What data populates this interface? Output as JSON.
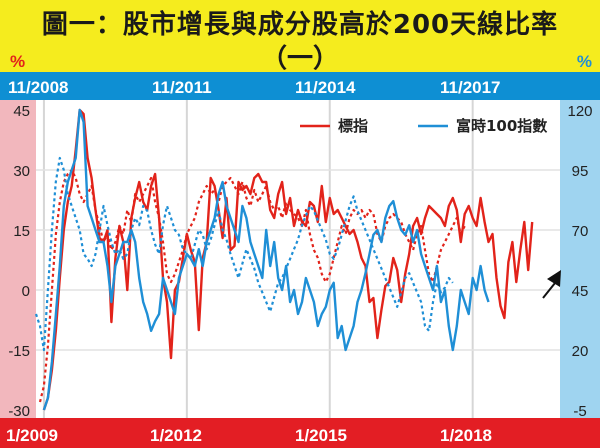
{
  "title": {
    "line1": "圖一：股市增長與成分股高於200天線比率",
    "line2": "（一）"
  },
  "units": {
    "left": "%",
    "right": "%"
  },
  "colors": {
    "title_bg": "#f5ec1e",
    "top_band": "#0e8fd3",
    "bottom_band": "#e31e24",
    "left_band": "#f2b7bd",
    "right_band": "#9fd4f0",
    "series_red": "#e2231a",
    "series_blue": "#1f8fd6"
  },
  "chart_data": {
    "type": "line",
    "top_axis_labels": [
      "11/2008",
      "11/2011",
      "11/2014",
      "11/2017"
    ],
    "bottom_axis_labels": [
      "1/2009",
      "1/2012",
      "1/2015",
      "1/2018"
    ],
    "left_axis": {
      "ticks": [
        45,
        30,
        15,
        0,
        -15,
        -30
      ],
      "ylim": [
        -30,
        45
      ]
    },
    "right_axis": {
      "ticks": [
        120,
        95,
        70,
        45,
        20,
        -5
      ],
      "ylim": [
        -5,
        120
      ]
    },
    "legend": {
      "position": "top-right"
    },
    "grid": true,
    "series": [
      {
        "name": "標指",
        "axis": "left",
        "style": "solid",
        "color": "#e2231a",
        "x_start": 2009.0,
        "x_step": 0.0833333,
        "values": [
          -30,
          -27,
          -20,
          -10,
          3,
          15,
          22,
          26,
          35,
          45,
          44,
          33,
          28,
          20,
          13,
          12,
          15,
          -8,
          8,
          16,
          12,
          0,
          18,
          23,
          27,
          22,
          20,
          26,
          29,
          18,
          3,
          -3,
          -17,
          0,
          2,
          8,
          14,
          10,
          7,
          -10,
          8,
          12,
          28,
          26,
          20,
          13,
          23,
          10,
          11,
          27,
          25,
          26,
          24,
          28,
          29,
          27,
          27,
          20,
          18,
          24,
          27,
          19,
          23,
          16,
          20,
          17,
          16,
          22,
          21,
          17,
          26,
          17,
          23,
          19,
          20,
          18,
          16,
          14,
          15,
          12,
          8,
          6,
          -3,
          -2,
          -12,
          -5,
          1,
          2,
          8,
          5,
          -3,
          4,
          9,
          16,
          18,
          14,
          18,
          21,
          20,
          19,
          18,
          16,
          21,
          23,
          20,
          12,
          19,
          21,
          18,
          16,
          23,
          17,
          12,
          14,
          3,
          -4,
          -7,
          7,
          12,
          2,
          10,
          17,
          5,
          17
        ]
      },
      {
        "name": "",
        "axis": "left",
        "style": "dotted",
        "color": "#e2231a",
        "x_start": 2008.9167,
        "x_step": 0.0833333,
        "values": [
          -28,
          -24,
          -14,
          0,
          14,
          22,
          27,
          29,
          30,
          28,
          24,
          22,
          24,
          26,
          20,
          16,
          12,
          14,
          10,
          12,
          16,
          14,
          20,
          17,
          24,
          22,
          24,
          26,
          28,
          22,
          18,
          12,
          4,
          2,
          4,
          7,
          10,
          14,
          16,
          18,
          22,
          24,
          26,
          24,
          25,
          22,
          26,
          27,
          28,
          26,
          24,
          27,
          23,
          21,
          25,
          22,
          24,
          26,
          22,
          20,
          21,
          18,
          22,
          20,
          19,
          18,
          16,
          20,
          14,
          10,
          8,
          4,
          2,
          4,
          8,
          12,
          16,
          14,
          18,
          20,
          19,
          20,
          18,
          20,
          19,
          14,
          12,
          16,
          18,
          19,
          18,
          17,
          14,
          12,
          10,
          14,
          16,
          10,
          4,
          2,
          6,
          10,
          12,
          14,
          16,
          18,
          14,
          16
        ]
      },
      {
        "name": "富時100指數",
        "axis": "right",
        "style": "solid",
        "color": "#1f8fd6",
        "x_start": 2009.0,
        "x_step": 0.0833333,
        "values": [
          -5,
          0,
          15,
          35,
          55,
          80,
          90,
          95,
          100,
          120,
          115,
          80,
          75,
          70,
          65,
          65,
          55,
          40,
          55,
          60,
          65,
          65,
          70,
          65,
          50,
          40,
          35,
          28,
          32,
          35,
          50,
          45,
          40,
          35,
          50,
          55,
          60,
          58,
          55,
          62,
          55,
          65,
          70,
          75,
          85,
          90,
          80,
          75,
          70,
          65,
          80,
          75,
          65,
          60,
          55,
          50,
          70,
          55,
          65,
          50,
          45,
          55,
          40,
          45,
          35,
          40,
          50,
          45,
          40,
          30,
          35,
          38,
          45,
          48,
          25,
          30,
          20,
          25,
          30,
          40,
          45,
          52,
          60,
          68,
          70,
          65,
          75,
          80,
          82,
          75,
          70,
          68,
          72,
          65,
          70,
          60,
          55,
          50,
          45,
          55,
          40,
          45,
          30,
          20,
          30,
          45,
          40,
          35,
          50,
          45,
          55,
          45,
          40
        ]
      },
      {
        "name": "",
        "axis": "right",
        "style": "dotted",
        "color": "#1f8fd6",
        "x_start": 2008.8333,
        "x_step": 0.0833333,
        "values": [
          35,
          30,
          20,
          45,
          70,
          90,
          100,
          95,
          85,
          80,
          75,
          70,
          60,
          58,
          55,
          60,
          70,
          80,
          72,
          65,
          60,
          62,
          58,
          60,
          70,
          75,
          72,
          80,
          78,
          70,
          64,
          60,
          72,
          80,
          75,
          70,
          68,
          62,
          60,
          58,
          64,
          70,
          68,
          62,
          66,
          72,
          78,
          70,
          66,
          60,
          55,
          50,
          56,
          62,
          58,
          54,
          48,
          44,
          40,
          36,
          42,
          48,
          50,
          54,
          58,
          62,
          66,
          72,
          76,
          80,
          78,
          74,
          70,
          66,
          60,
          58,
          62,
          68,
          74,
          80,
          84,
          78,
          74,
          70,
          66,
          62,
          58,
          54,
          50,
          46,
          42,
          38,
          44,
          50,
          52,
          48,
          44,
          40,
          30,
          28,
          40,
          48,
          44,
          46,
          50,
          48
        ]
      }
    ]
  }
}
